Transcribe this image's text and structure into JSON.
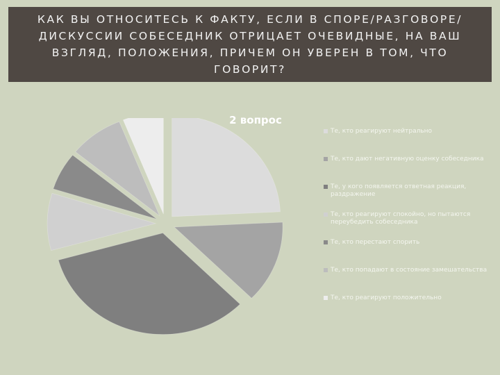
{
  "slide": {
    "title": "КАК ВЫ ОТНОСИТЕСЬ К ФАКТУ, ЕСЛИ В СПОРЕ/РАЗГОВОРЕ/ДИСКУССИИ СОБЕСЕДНИК ОТРИЦАЕТ ОЧЕВИДНЫЕ, НА ВАШ ВЗГЛЯД, ПОЛОЖЕНИЯ, ПРИЧЕМ ОН УВЕРЕН В ТОМ, ЧТО ГОВОРИТ?"
  },
  "chart_data": {
    "type": "pie",
    "title": "2 вопрос",
    "legend_position": "right",
    "categories": [
      "Те, кто реагируют нейтрально",
      "Те, кто дают негативную оценку собеседника",
      "Те, у кого появляется ответная реакция, раздражение",
      "Те, кто реагируют спокойно, но пытаются переубедить собеседника",
      "Те, кто перестают спорить",
      "Те, кто попадают в состояние замешательства",
      "Те, кто реагируют положительно"
    ],
    "values": [
      24,
      13,
      33,
      9,
      6,
      8,
      6
    ],
    "colors": [
      "#dcdcdc",
      "#a4a4a4",
      "#7f7f7f",
      "#d0d0d0",
      "#8a8a8a",
      "#bdbdbd",
      "#ededed"
    ]
  }
}
